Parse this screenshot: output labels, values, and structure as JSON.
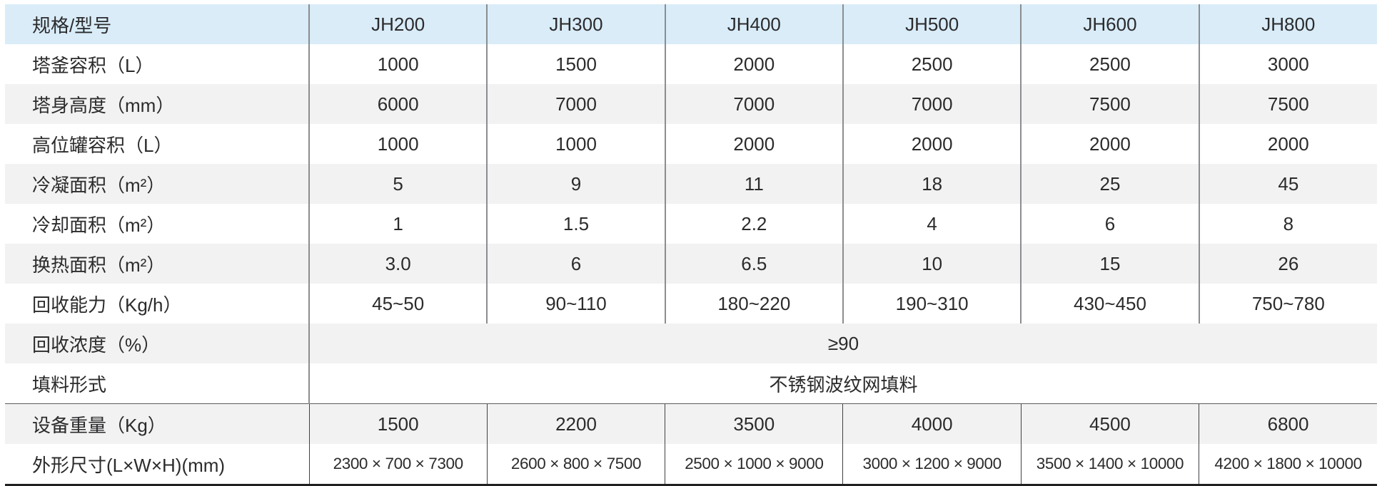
{
  "table": {
    "header": {
      "label": "规格/型号",
      "models": [
        "JH200",
        "JH300",
        "JH400",
        "JH500",
        "JH600",
        "JH800"
      ]
    },
    "rows": [
      {
        "label": "塔釜容积（L）",
        "values": [
          "1000",
          "1500",
          "2000",
          "2500",
          "2500",
          "3000"
        ]
      },
      {
        "label": "塔身高度（mm）",
        "values": [
          "6000",
          "7000",
          "7000",
          "7000",
          "7500",
          "7500"
        ]
      },
      {
        "label": "高位罐容积（L）",
        "values": [
          "1000",
          "1000",
          "2000",
          "2000",
          "2000",
          "2000"
        ]
      },
      {
        "label": "冷凝面积（m²）",
        "values": [
          "5",
          "9",
          "11",
          "18",
          "25",
          "45"
        ]
      },
      {
        "label": "冷却面积（m²）",
        "values": [
          "1",
          "1.5",
          "2.2",
          "4",
          "6",
          "8"
        ]
      },
      {
        "label": "换热面积（m²）",
        "values": [
          "3.0",
          "6",
          "6.5",
          "10",
          "15",
          "26"
        ]
      },
      {
        "label": "回收能力（Kg/h）",
        "values": [
          "45~50",
          "90~110",
          "180~220",
          "190~310",
          "430~450",
          "750~780"
        ]
      },
      {
        "label": "回收浓度（%）",
        "span_value": "≥90"
      },
      {
        "label": "填料形式",
        "span_value": "不锈钢波纹网填料"
      },
      {
        "label": "设备重量（Kg）",
        "values": [
          "1500",
          "2200",
          "3500",
          "4000",
          "4500",
          "6800"
        ]
      },
      {
        "label": "外形尺寸(L×W×H)(mm)",
        "values": [
          "2300 × 700 × 7300",
          "2600 × 800 × 7500",
          "2500 × 1000 × 9000",
          "3000 × 1200 × 9000",
          "3500 × 1400 × 10000",
          "4200 × 1800 × 10000"
        ]
      }
    ],
    "colors": {
      "header_bg": "#d9ecf8",
      "stripe_bg": "#f2f2f2",
      "divider": "#8b8d90",
      "divider_dark": "#414144",
      "rule": "#5b5c5f",
      "bottom_border": "#202022",
      "text": "#2b2b2d"
    }
  }
}
